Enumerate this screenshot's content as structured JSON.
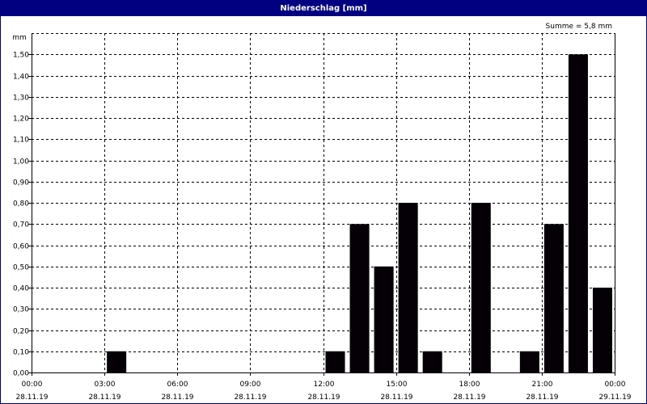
{
  "window": {
    "title": "Niederschlag [mm]"
  },
  "chart_data": {
    "type": "bar",
    "title": "Niederschlag [mm]",
    "ylabel": "mm",
    "annotation": "Summe = 5,8 mm",
    "ylim": [
      0,
      1.6
    ],
    "xlim_hours": [
      0,
      24
    ],
    "y_ticks": [
      "0,00",
      "0,10",
      "0,20",
      "0,30",
      "0,40",
      "0,50",
      "0,60",
      "0,70",
      "0,80",
      "0,90",
      "1,00",
      "1,10",
      "1,20",
      "1,30",
      "1,40",
      "1,50"
    ],
    "x_ticks": [
      {
        "time": "00:00",
        "date": "28.11.19"
      },
      {
        "time": "03:00",
        "date": "28.11.19"
      },
      {
        "time": "06:00",
        "date": "28.11.19"
      },
      {
        "time": "09:00",
        "date": "28.11.19"
      },
      {
        "time": "12:00",
        "date": "28.11.19"
      },
      {
        "time": "15:00",
        "date": "28.11.19"
      },
      {
        "time": "18:00",
        "date": "28.11.19"
      },
      {
        "time": "21:00",
        "date": "28.11.19"
      },
      {
        "time": "00:00",
        "date": "29.11.19"
      }
    ],
    "bars": [
      {
        "hour": 3.5,
        "value": 0.1
      },
      {
        "hour": 12.5,
        "value": 0.1
      },
      {
        "hour": 13.5,
        "value": 0.7
      },
      {
        "hour": 14.5,
        "value": 0.5
      },
      {
        "hour": 15.5,
        "value": 0.8
      },
      {
        "hour": 16.5,
        "value": 0.1
      },
      {
        "hour": 18.5,
        "value": 0.8
      },
      {
        "hour": 20.5,
        "value": 0.1
      },
      {
        "hour": 21.5,
        "value": 0.7
      },
      {
        "hour": 22.5,
        "value": 1.5
      },
      {
        "hour": 23.5,
        "value": 0.4
      }
    ],
    "grid": true,
    "bar_color": "#050005",
    "title_bar_color": "#000080"
  }
}
